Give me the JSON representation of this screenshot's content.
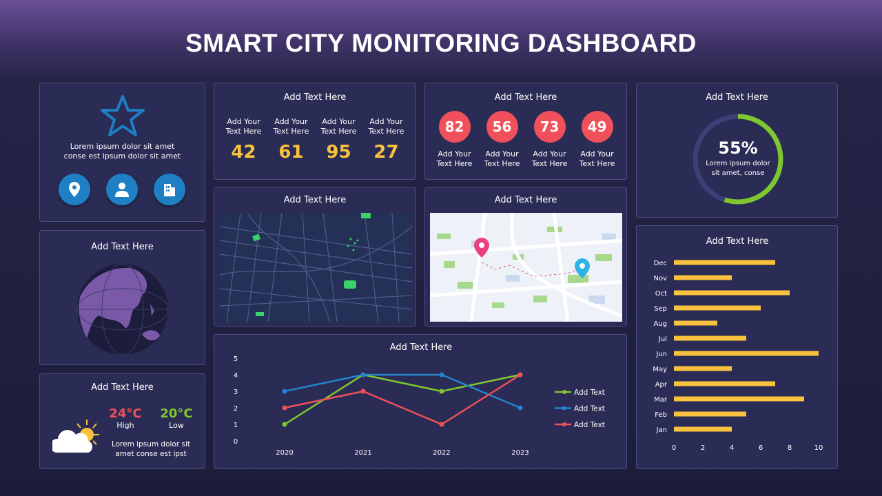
{
  "header": {
    "title": "SMART CITY MONITORING DASHBOARD"
  },
  "intro": {
    "text1": "Lorem ipsum dolor sit amet",
    "text2": "conse est ipsum dolor sit amet",
    "icons": [
      "location-pin-icon",
      "user-icon",
      "building-icon"
    ]
  },
  "stats": {
    "title": "Add Text Here",
    "items": [
      {
        "label1": "Add Your",
        "label2": "Text Here",
        "value": "42"
      },
      {
        "label1": "Add Your",
        "label2": "Text Here",
        "value": "61"
      },
      {
        "label1": "Add Your",
        "label2": "Text Here",
        "value": "95"
      },
      {
        "label1": "Add Your",
        "label2": "Text Here",
        "value": "27"
      }
    ]
  },
  "circles": {
    "title": "Add Text Here",
    "items": [
      {
        "value": "82",
        "label1": "Add Your",
        "label2": "Text Here"
      },
      {
        "value": "56",
        "label1": "Add Your",
        "label2": "Text Here"
      },
      {
        "value": "73",
        "label1": "Add Your",
        "label2": "Text Here"
      },
      {
        "value": "49",
        "label1": "Add Your",
        "label2": "Text Here"
      }
    ]
  },
  "gauge": {
    "title": "Add Text Here",
    "value": "55%",
    "percent": 55,
    "text1": "Lorem ipsum dolor",
    "text2": "sit amet, conse",
    "color": "#7ec82f"
  },
  "globe": {
    "title": "Add Text Here"
  },
  "map_dark": {
    "title": "Add Text Here"
  },
  "map_light": {
    "title": "Add Text Here"
  },
  "weather": {
    "title": "Add Text Here",
    "high": "24°C",
    "high_label": "High",
    "low": "20°C",
    "low_label": "Low",
    "text1": "Lorem ipsum dolor sit",
    "text2": "amet conse est ipst"
  },
  "chart_data": [
    {
      "type": "line",
      "title": "Add Text Here",
      "categories": [
        "2020",
        "2021",
        "2022",
        "2023"
      ],
      "ylim": [
        0,
        5
      ],
      "yticks": [
        "0",
        "1",
        "2",
        "3",
        "4",
        "5"
      ],
      "legend": "right",
      "series": [
        {
          "name": "Add Text",
          "color": "#7ec82f",
          "values": [
            1,
            4,
            3,
            4
          ]
        },
        {
          "name": "Add Text",
          "color": "#2384cf",
          "values": [
            3,
            4,
            4,
            2
          ]
        },
        {
          "name": "Add Text",
          "color": "#f0505a",
          "values": [
            2,
            3,
            1,
            4
          ]
        }
      ]
    },
    {
      "type": "bar",
      "orientation": "horizontal",
      "title": "Add Text Here",
      "categories": [
        "Dec",
        "Nov",
        "Oct",
        "Sep",
        "Aug",
        "Jul",
        "Jun",
        "May",
        "Apr",
        "Mar",
        "Feb",
        "Jan"
      ],
      "values": [
        7,
        4,
        8,
        6,
        3,
        5,
        10,
        4,
        7,
        9,
        5,
        4
      ],
      "xlim": [
        0,
        10
      ],
      "xticks": [
        "0",
        "2",
        "4",
        "6",
        "8",
        "10"
      ],
      "color": "#f9c23c"
    }
  ]
}
